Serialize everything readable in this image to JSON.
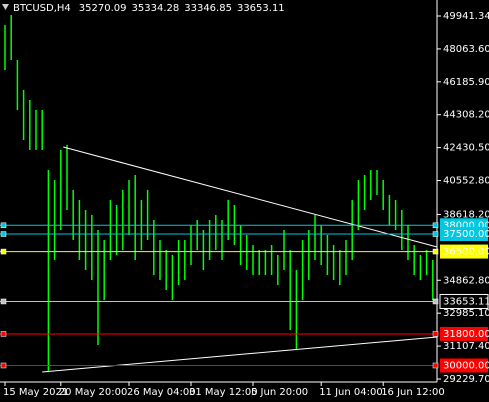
{
  "chart_data": {
    "type": "hl-bar",
    "symbol": "BTCUSD,H4",
    "ohlc": [
      35270.09,
      35334.28,
      33346.85,
      33653.11
    ],
    "color": "#00ff00",
    "categories": [
      "15 May 2021",
      null,
      null,
      null,
      null,
      null,
      null,
      null,
      null,
      "20 May 20:00",
      null,
      null,
      null,
      null,
      null,
      null,
      null,
      null,
      null,
      null,
      "26 May 04:00",
      null,
      null,
      null,
      null,
      null,
      null,
      null,
      null,
      null,
      "31 May 12:00",
      null,
      null,
      null,
      null,
      null,
      null,
      null,
      null,
      null,
      "5 Jun 20:00",
      null,
      null,
      null,
      null,
      null,
      null,
      null,
      null,
      null,
      null,
      "11 Jun 04:00",
      null,
      null,
      null,
      null,
      null,
      null,
      null,
      null,
      null,
      "16 Jun 12:00",
      null,
      null,
      null,
      null,
      null,
      null,
      null,
      null
    ],
    "high": [
      49427,
      49998,
      47430,
      45719,
      45148,
      44577,
      44577,
      41154,
      40583,
      42295,
      42580,
      40013,
      39442,
      38871,
      38586,
      37730,
      37160,
      39442,
      39157,
      40013,
      40583,
      40868,
      39442,
      40013,
      38301,
      37160,
      36589,
      36304,
      37160,
      37160,
      38015,
      38301,
      37730,
      38301,
      38586,
      38301,
      39442,
      39157,
      38015,
      37445,
      36874,
      36589,
      36589,
      36874,
      36304,
      37730,
      36589,
      35448,
      37160,
      37730,
      38586,
      38015,
      37445,
      36874,
      36589,
      37160,
      39442,
      40583,
      40868,
      41154,
      41154,
      40583,
      39727,
      39442,
      38871,
      38015,
      36874,
      36304,
      36589,
      36018
    ],
    "low": [
      46860,
      47430,
      44577,
      42866,
      42295,
      42295,
      42295,
      29628,
      36018,
      37730,
      38871,
      37160,
      36018,
      35448,
      34877,
      31168,
      33736,
      36018,
      36304,
      36589,
      37445,
      36018,
      36589,
      37160,
      35162,
      34877,
      34307,
      33736,
      34592,
      34877,
      35733,
      36589,
      35448,
      36018,
      36589,
      36018,
      37160,
      36874,
      35733,
      35448,
      35162,
      35162,
      35162,
      35162,
      34592,
      35448,
      32024,
      30883,
      33736,
      34877,
      36018,
      35733,
      35162,
      34877,
      34592,
      35162,
      36018,
      37730,
      38871,
      39442,
      39727,
      38871,
      38015,
      37730,
      36589,
      36018,
      35162,
      34877,
      35162,
      33736
    ],
    "ylim": [
      29058,
      50854
    ],
    "yticks": [
      49941.34,
      {
        "value": 48063.6,
        "label": "48063.60"
      },
      {
        "value": 46185.9,
        "label": "46185.90"
      },
      {
        "value": 44308.2,
        "label": "44308.20"
      },
      {
        "value": 42430.5,
        "label": "42430.50"
      },
      {
        "value": 40552.8,
        "label": "40552.80"
      },
      {
        "value": 38618.2,
        "label": "38618.20"
      },
      {
        "value": 34862.8,
        "label": "34862.80"
      },
      {
        "value": 32985.1,
        "label": "32985.10"
      },
      {
        "value": 31107.4,
        "label": "31107.40"
      },
      {
        "value": 29229.7,
        "label": "29229.70"
      }
    ],
    "levels": [
      {
        "value": 38000,
        "label": "38000.00",
        "color": "#00c8e0"
      },
      {
        "value": 37500,
        "label": "37500.00",
        "color": "#00c8e0"
      },
      {
        "value": 36500,
        "label": "36500.00",
        "color": "#ffff00"
      },
      {
        "value": 33653.11,
        "label": "33653.11",
        "color": "#c0c0c0"
      },
      {
        "value": 31800,
        "label": "31800.00",
        "color": "#ff0000"
      },
      {
        "value": 30000,
        "label": "30000.00",
        "color": "#ff0000"
      }
    ],
    "trendlines": [
      {
        "x": [
          9.4,
          69.7
        ],
        "y": [
          42466,
          36760
        ]
      },
      {
        "x": [
          6,
          69.7
        ],
        "y": [
          29630,
          31626
        ]
      }
    ]
  }
}
